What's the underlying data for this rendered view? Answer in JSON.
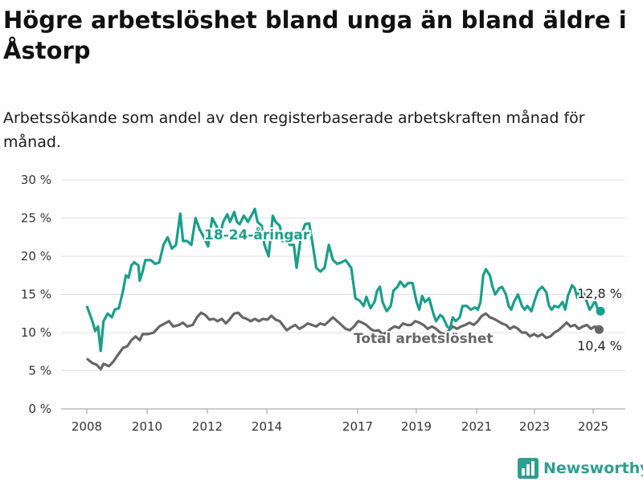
{
  "title": "Högre arbetslöshet bland unga än bland äldre i Åstorp",
  "subtitle": "Arbetssökande som andel av den registerbaserade arbetskraften månad för månad.",
  "brand": {
    "name": "Newsworthy",
    "icon": "bar-chart-logo-icon",
    "color": "#2e9e8f"
  },
  "chart_data": {
    "type": "line",
    "xlim": [
      2007.6,
      2026.0
    ],
    "ylim": [
      0,
      30
    ],
    "yticks": [
      0,
      5,
      10,
      15,
      20,
      25,
      30
    ],
    "ytick_labels": [
      "0 %",
      "5 %",
      "10 %",
      "15 %",
      "20 %",
      "25 %",
      "30 %"
    ],
    "xticks": [
      2008,
      2010,
      2012,
      2014,
      2017,
      2019,
      2021,
      2023,
      2025
    ],
    "xtick_labels": [
      "2008",
      "2010",
      "2012",
      "2014",
      "2017",
      "2019",
      "2021",
      "2023",
      "2025"
    ],
    "grid": true,
    "legend": "inline labels",
    "series": [
      {
        "name": "18-24-åringar",
        "color": "#1a9e8c",
        "end_label": "12,8 %",
        "points": [
          [
            2008.0,
            13.5
          ],
          [
            2008.2,
            11.5
          ],
          [
            2008.3,
            10.2
          ],
          [
            2008.4,
            10.8
          ],
          [
            2008.5,
            7.6
          ],
          [
            2008.6,
            11.5
          ],
          [
            2008.75,
            12.5
          ],
          [
            2008.9,
            12.0
          ],
          [
            2009.0,
            13.0
          ],
          [
            2009.15,
            13.2
          ],
          [
            2009.3,
            15.5
          ],
          [
            2009.4,
            17.5
          ],
          [
            2009.5,
            17.2
          ],
          [
            2009.6,
            18.8
          ],
          [
            2009.7,
            19.2
          ],
          [
            2009.85,
            18.8
          ],
          [
            2009.9,
            16.8
          ],
          [
            2010.0,
            18.0
          ],
          [
            2010.1,
            19.5
          ],
          [
            2010.3,
            19.5
          ],
          [
            2010.45,
            19.0
          ],
          [
            2010.6,
            19.2
          ],
          [
            2010.75,
            21.5
          ],
          [
            2010.9,
            22.5
          ],
          [
            2011.05,
            21.0
          ],
          [
            2011.2,
            21.5
          ],
          [
            2011.35,
            25.6
          ],
          [
            2011.45,
            22.0
          ],
          [
            2011.6,
            22.0
          ],
          [
            2011.75,
            21.5
          ],
          [
            2011.9,
            25.0
          ],
          [
            2012.05,
            23.5
          ],
          [
            2012.2,
            22.5
          ],
          [
            2012.35,
            21.3
          ],
          [
            2012.5,
            25.0
          ],
          [
            2012.65,
            24.0
          ],
          [
            2012.8,
            23.0
          ],
          [
            2012.9,
            24.5
          ],
          [
            2013.05,
            25.5
          ],
          [
            2013.15,
            24.5
          ],
          [
            2013.3,
            25.8
          ],
          [
            2013.4,
            24.5
          ],
          [
            2013.5,
            24.2
          ],
          [
            2013.65,
            25.3
          ],
          [
            2013.8,
            24.5
          ],
          [
            2013.95,
            25.5
          ],
          [
            2014.05,
            26.2
          ],
          [
            2014.15,
            24.5
          ],
          [
            2014.3,
            24.0
          ],
          [
            2014.4,
            21.5
          ],
          [
            2014.55,
            20.0
          ],
          [
            2014.7,
            25.3
          ],
          [
            2014.8,
            24.5
          ],
          [
            2014.95,
            24.0
          ],
          [
            2015.05,
            22.0
          ],
          [
            2015.2,
            22.2
          ],
          [
            2015.3,
            21.5
          ],
          [
            2015.45,
            21.5
          ],
          [
            2015.55,
            18.5
          ],
          [
            2015.7,
            22.5
          ],
          [
            2015.85,
            24.2
          ],
          [
            2016.0,
            24.3
          ],
          [
            2016.15,
            21.0
          ],
          [
            2016.25,
            18.5
          ],
          [
            2016.4,
            18.0
          ],
          [
            2016.55,
            18.5
          ],
          [
            2016.7,
            21.5
          ],
          [
            2016.85,
            19.5
          ],
          [
            2017.0,
            19.0
          ],
          [
            2017.15,
            19.2
          ],
          [
            2017.3,
            19.5
          ],
          [
            2017.5,
            18.5
          ],
          [
            2017.65,
            14.5
          ],
          [
            2017.8,
            14.2
          ],
          [
            2017.95,
            13.5
          ],
          [
            2018.05,
            14.7
          ],
          [
            2018.2,
            13.2
          ],
          [
            2018.35,
            14.0
          ],
          [
            2018.45,
            15.5
          ],
          [
            2018.55,
            16.0
          ],
          [
            2018.65,
            14.0
          ],
          [
            2018.8,
            12.8
          ],
          [
            2018.95,
            13.5
          ],
          [
            2019.05,
            15.5
          ],
          [
            2019.2,
            16.0
          ],
          [
            2019.3,
            16.7
          ],
          [
            2019.45,
            16.0
          ],
          [
            2019.6,
            16.5
          ],
          [
            2019.75,
            16.5
          ],
          [
            2019.9,
            14.0
          ],
          [
            2020.0,
            13.0
          ],
          [
            2020.1,
            14.8
          ],
          [
            2020.2,
            14.0
          ],
          [
            2020.35,
            14.5
          ],
          [
            2020.5,
            12.5
          ],
          [
            2020.6,
            11.5
          ],
          [
            2020.75,
            12.3
          ],
          [
            2020.85,
            12.0
          ],
          [
            2021.0,
            10.8
          ],
          [
            2021.1,
            10.5
          ],
          [
            2021.2,
            12.0
          ],
          [
            2021.3,
            11.5
          ],
          [
            2021.45,
            12.0
          ],
          [
            2021.55,
            13.5
          ],
          [
            2021.7,
            13.5
          ],
          [
            2021.85,
            13.0
          ],
          [
            2022.0,
            13.3
          ],
          [
            2022.1,
            13.0
          ],
          [
            2022.2,
            14.0
          ],
          [
            2022.3,
            17.5
          ],
          [
            2022.4,
            18.3
          ],
          [
            2022.55,
            17.5
          ],
          [
            2022.65,
            16.0
          ],
          [
            2022.75,
            15.0
          ],
          [
            2022.9,
            15.8
          ],
          [
            2023.0,
            16.0
          ],
          [
            2023.15,
            15.0
          ],
          [
            2023.25,
            13.5
          ],
          [
            2023.35,
            13.0
          ],
          [
            2023.45,
            14.0
          ],
          [
            2023.6,
            15.0
          ],
          [
            2023.75,
            13.5
          ],
          [
            2023.85,
            13.0
          ],
          [
            2023.95,
            13.5
          ],
          [
            2024.1,
            12.8
          ],
          [
            2024.25,
            14.5
          ],
          [
            2024.35,
            15.5
          ],
          [
            2024.5,
            16.0
          ],
          [
            2024.65,
            15.3
          ],
          [
            2024.75,
            13.5
          ],
          [
            2024.85,
            13.0
          ],
          [
            2024.95,
            13.5
          ],
          [
            2025.1,
            13.3
          ],
          [
            2025.25,
            14.0
          ],
          [
            2025.35,
            13.0
          ],
          [
            2025.45,
            14.8
          ],
          [
            2025.6,
            16.2
          ],
          [
            2025.7,
            15.8
          ],
          [
            2025.8,
            14.5
          ],
          [
            2025.9,
            15.8
          ],
          [
            2026.05,
            15.0
          ],
          [
            2026.15,
            14.0
          ],
          [
            2026.25,
            13.0
          ],
          [
            2026.35,
            13.5
          ],
          [
            2026.45,
            14.2
          ],
          [
            2026.55,
            13.0
          ],
          [
            2026.65,
            12.8
          ]
        ]
      },
      {
        "name": "Total arbetslöshet",
        "color": "#666666",
        "end_label": "10,4 %",
        "points": [
          [
            2008.0,
            6.6
          ],
          [
            2008.2,
            6.0
          ],
          [
            2008.35,
            5.8
          ],
          [
            2008.5,
            5.2
          ],
          [
            2008.6,
            5.9
          ],
          [
            2008.8,
            5.6
          ],
          [
            2008.95,
            6.2
          ],
          [
            2009.1,
            7.0
          ],
          [
            2009.3,
            8.0
          ],
          [
            2009.45,
            8.2
          ],
          [
            2009.6,
            9.0
          ],
          [
            2009.75,
            9.5
          ],
          [
            2009.9,
            9.0
          ],
          [
            2010.0,
            9.8
          ],
          [
            2010.2,
            9.8
          ],
          [
            2010.4,
            10.0
          ],
          [
            2010.6,
            10.8
          ],
          [
            2010.8,
            11.2
          ],
          [
            2010.95,
            11.5
          ],
          [
            2011.1,
            10.8
          ],
          [
            2011.3,
            11.0
          ],
          [
            2011.45,
            11.3
          ],
          [
            2011.6,
            10.8
          ],
          [
            2011.8,
            11.0
          ],
          [
            2011.95,
            12.0
          ],
          [
            2012.1,
            12.6
          ],
          [
            2012.25,
            12.3
          ],
          [
            2012.4,
            11.7
          ],
          [
            2012.55,
            11.8
          ],
          [
            2012.7,
            11.5
          ],
          [
            2012.85,
            11.8
          ],
          [
            2013.0,
            11.2
          ],
          [
            2013.15,
            11.8
          ],
          [
            2013.3,
            12.5
          ],
          [
            2013.45,
            12.6
          ],
          [
            2013.6,
            12.0
          ],
          [
            2013.75,
            11.8
          ],
          [
            2013.9,
            11.5
          ],
          [
            2014.05,
            11.8
          ],
          [
            2014.2,
            11.5
          ],
          [
            2014.35,
            11.8
          ],
          [
            2014.5,
            11.7
          ],
          [
            2014.65,
            12.2
          ],
          [
            2014.8,
            11.7
          ],
          [
            2014.95,
            11.5
          ],
          [
            2015.05,
            11.0
          ],
          [
            2015.2,
            10.3
          ],
          [
            2015.35,
            10.7
          ],
          [
            2015.5,
            11.0
          ],
          [
            2015.65,
            10.5
          ],
          [
            2015.8,
            10.8
          ],
          [
            2015.95,
            11.2
          ],
          [
            2016.1,
            11.0
          ],
          [
            2016.25,
            10.8
          ],
          [
            2016.4,
            11.2
          ],
          [
            2016.55,
            11.0
          ],
          [
            2016.7,
            11.5
          ],
          [
            2016.85,
            12.0
          ],
          [
            2017.0,
            11.5
          ],
          [
            2017.15,
            11.0
          ],
          [
            2017.3,
            10.5
          ],
          [
            2017.45,
            10.3
          ],
          [
            2017.6,
            10.8
          ],
          [
            2017.75,
            11.5
          ],
          [
            2017.9,
            11.3
          ],
          [
            2018.05,
            11.0
          ],
          [
            2018.2,
            10.5
          ],
          [
            2018.35,
            10.2
          ],
          [
            2018.5,
            10.3
          ],
          [
            2018.65,
            9.8
          ],
          [
            2018.8,
            10.0
          ],
          [
            2018.95,
            10.5
          ],
          [
            2019.1,
            10.8
          ],
          [
            2019.25,
            10.6
          ],
          [
            2019.4,
            11.2
          ],
          [
            2019.55,
            11.0
          ],
          [
            2019.7,
            11.0
          ],
          [
            2019.85,
            11.5
          ],
          [
            2020.0,
            11.3
          ],
          [
            2020.15,
            11.0
          ],
          [
            2020.3,
            10.5
          ],
          [
            2020.45,
            10.8
          ],
          [
            2020.6,
            10.5
          ],
          [
            2020.75,
            10.0
          ],
          [
            2020.9,
            9.8
          ],
          [
            2021.05,
            10.2
          ],
          [
            2021.2,
            10.8
          ],
          [
            2021.35,
            10.5
          ],
          [
            2021.5,
            10.8
          ],
          [
            2021.65,
            11.0
          ],
          [
            2021.8,
            11.3
          ],
          [
            2021.95,
            11.0
          ],
          [
            2022.1,
            11.5
          ],
          [
            2022.25,
            12.2
          ],
          [
            2022.4,
            12.5
          ],
          [
            2022.55,
            12.0
          ],
          [
            2022.7,
            11.8
          ],
          [
            2022.85,
            11.5
          ],
          [
            2023.0,
            11.2
          ],
          [
            2023.15,
            11.0
          ],
          [
            2023.3,
            10.5
          ],
          [
            2023.45,
            10.8
          ],
          [
            2023.6,
            10.5
          ],
          [
            2023.75,
            10.0
          ],
          [
            2023.9,
            10.0
          ],
          [
            2024.05,
            9.5
          ],
          [
            2024.2,
            9.8
          ],
          [
            2024.35,
            9.5
          ],
          [
            2024.5,
            9.8
          ],
          [
            2024.65,
            9.3
          ],
          [
            2024.8,
            9.5
          ],
          [
            2024.95,
            10.0
          ],
          [
            2025.1,
            10.3
          ],
          [
            2025.25,
            10.8
          ],
          [
            2025.4,
            11.3
          ],
          [
            2025.55,
            10.8
          ],
          [
            2025.7,
            11.0
          ],
          [
            2025.85,
            10.5
          ],
          [
            2026.0,
            10.8
          ],
          [
            2026.15,
            11.0
          ],
          [
            2026.3,
            10.5
          ],
          [
            2026.45,
            10.8
          ],
          [
            2026.6,
            10.4
          ]
        ]
      }
    ]
  }
}
